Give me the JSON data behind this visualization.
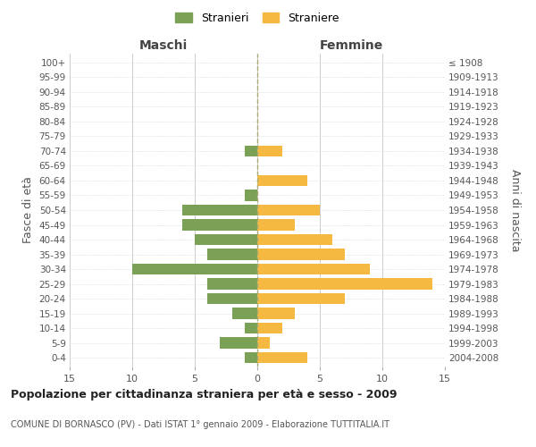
{
  "age_groups": [
    "0-4",
    "5-9",
    "10-14",
    "15-19",
    "20-24",
    "25-29",
    "30-34",
    "35-39",
    "40-44",
    "45-49",
    "50-54",
    "55-59",
    "60-64",
    "65-69",
    "70-74",
    "75-79",
    "80-84",
    "85-89",
    "90-94",
    "95-99",
    "100+"
  ],
  "birth_years": [
    "2004-2008",
    "1999-2003",
    "1994-1998",
    "1989-1993",
    "1984-1988",
    "1979-1983",
    "1974-1978",
    "1969-1973",
    "1964-1968",
    "1959-1963",
    "1954-1958",
    "1949-1953",
    "1944-1948",
    "1939-1943",
    "1934-1938",
    "1929-1933",
    "1924-1928",
    "1919-1923",
    "1914-1918",
    "1909-1913",
    "≤ 1908"
  ],
  "males": [
    1,
    3,
    1,
    2,
    4,
    4,
    10,
    4,
    5,
    6,
    6,
    1,
    0,
    0,
    1,
    0,
    0,
    0,
    0,
    0,
    0
  ],
  "females": [
    4,
    1,
    2,
    3,
    7,
    14,
    9,
    7,
    6,
    3,
    5,
    0,
    4,
    0,
    2,
    0,
    0,
    0,
    0,
    0,
    0
  ],
  "male_color": "#7aa155",
  "female_color": "#f5b942",
  "grid_color": "#cccccc",
  "background_color": "#ffffff",
  "bar_height": 0.75,
  "xlim": 15,
  "title": "Popolazione per cittadinanza straniera per età e sesso - 2009",
  "subtitle": "COMUNE DI BORNASCO (PV) - Dati ISTAT 1° gennaio 2009 - Elaborazione TUTTITALIA.IT",
  "ylabel_left": "Fasce di età",
  "ylabel_right": "Anni di nascita",
  "legend_male": "Stranieri",
  "legend_female": "Straniere",
  "maschi_label": "Maschi",
  "femmine_label": "Femmine",
  "dashed_line_color": "#aaa870"
}
